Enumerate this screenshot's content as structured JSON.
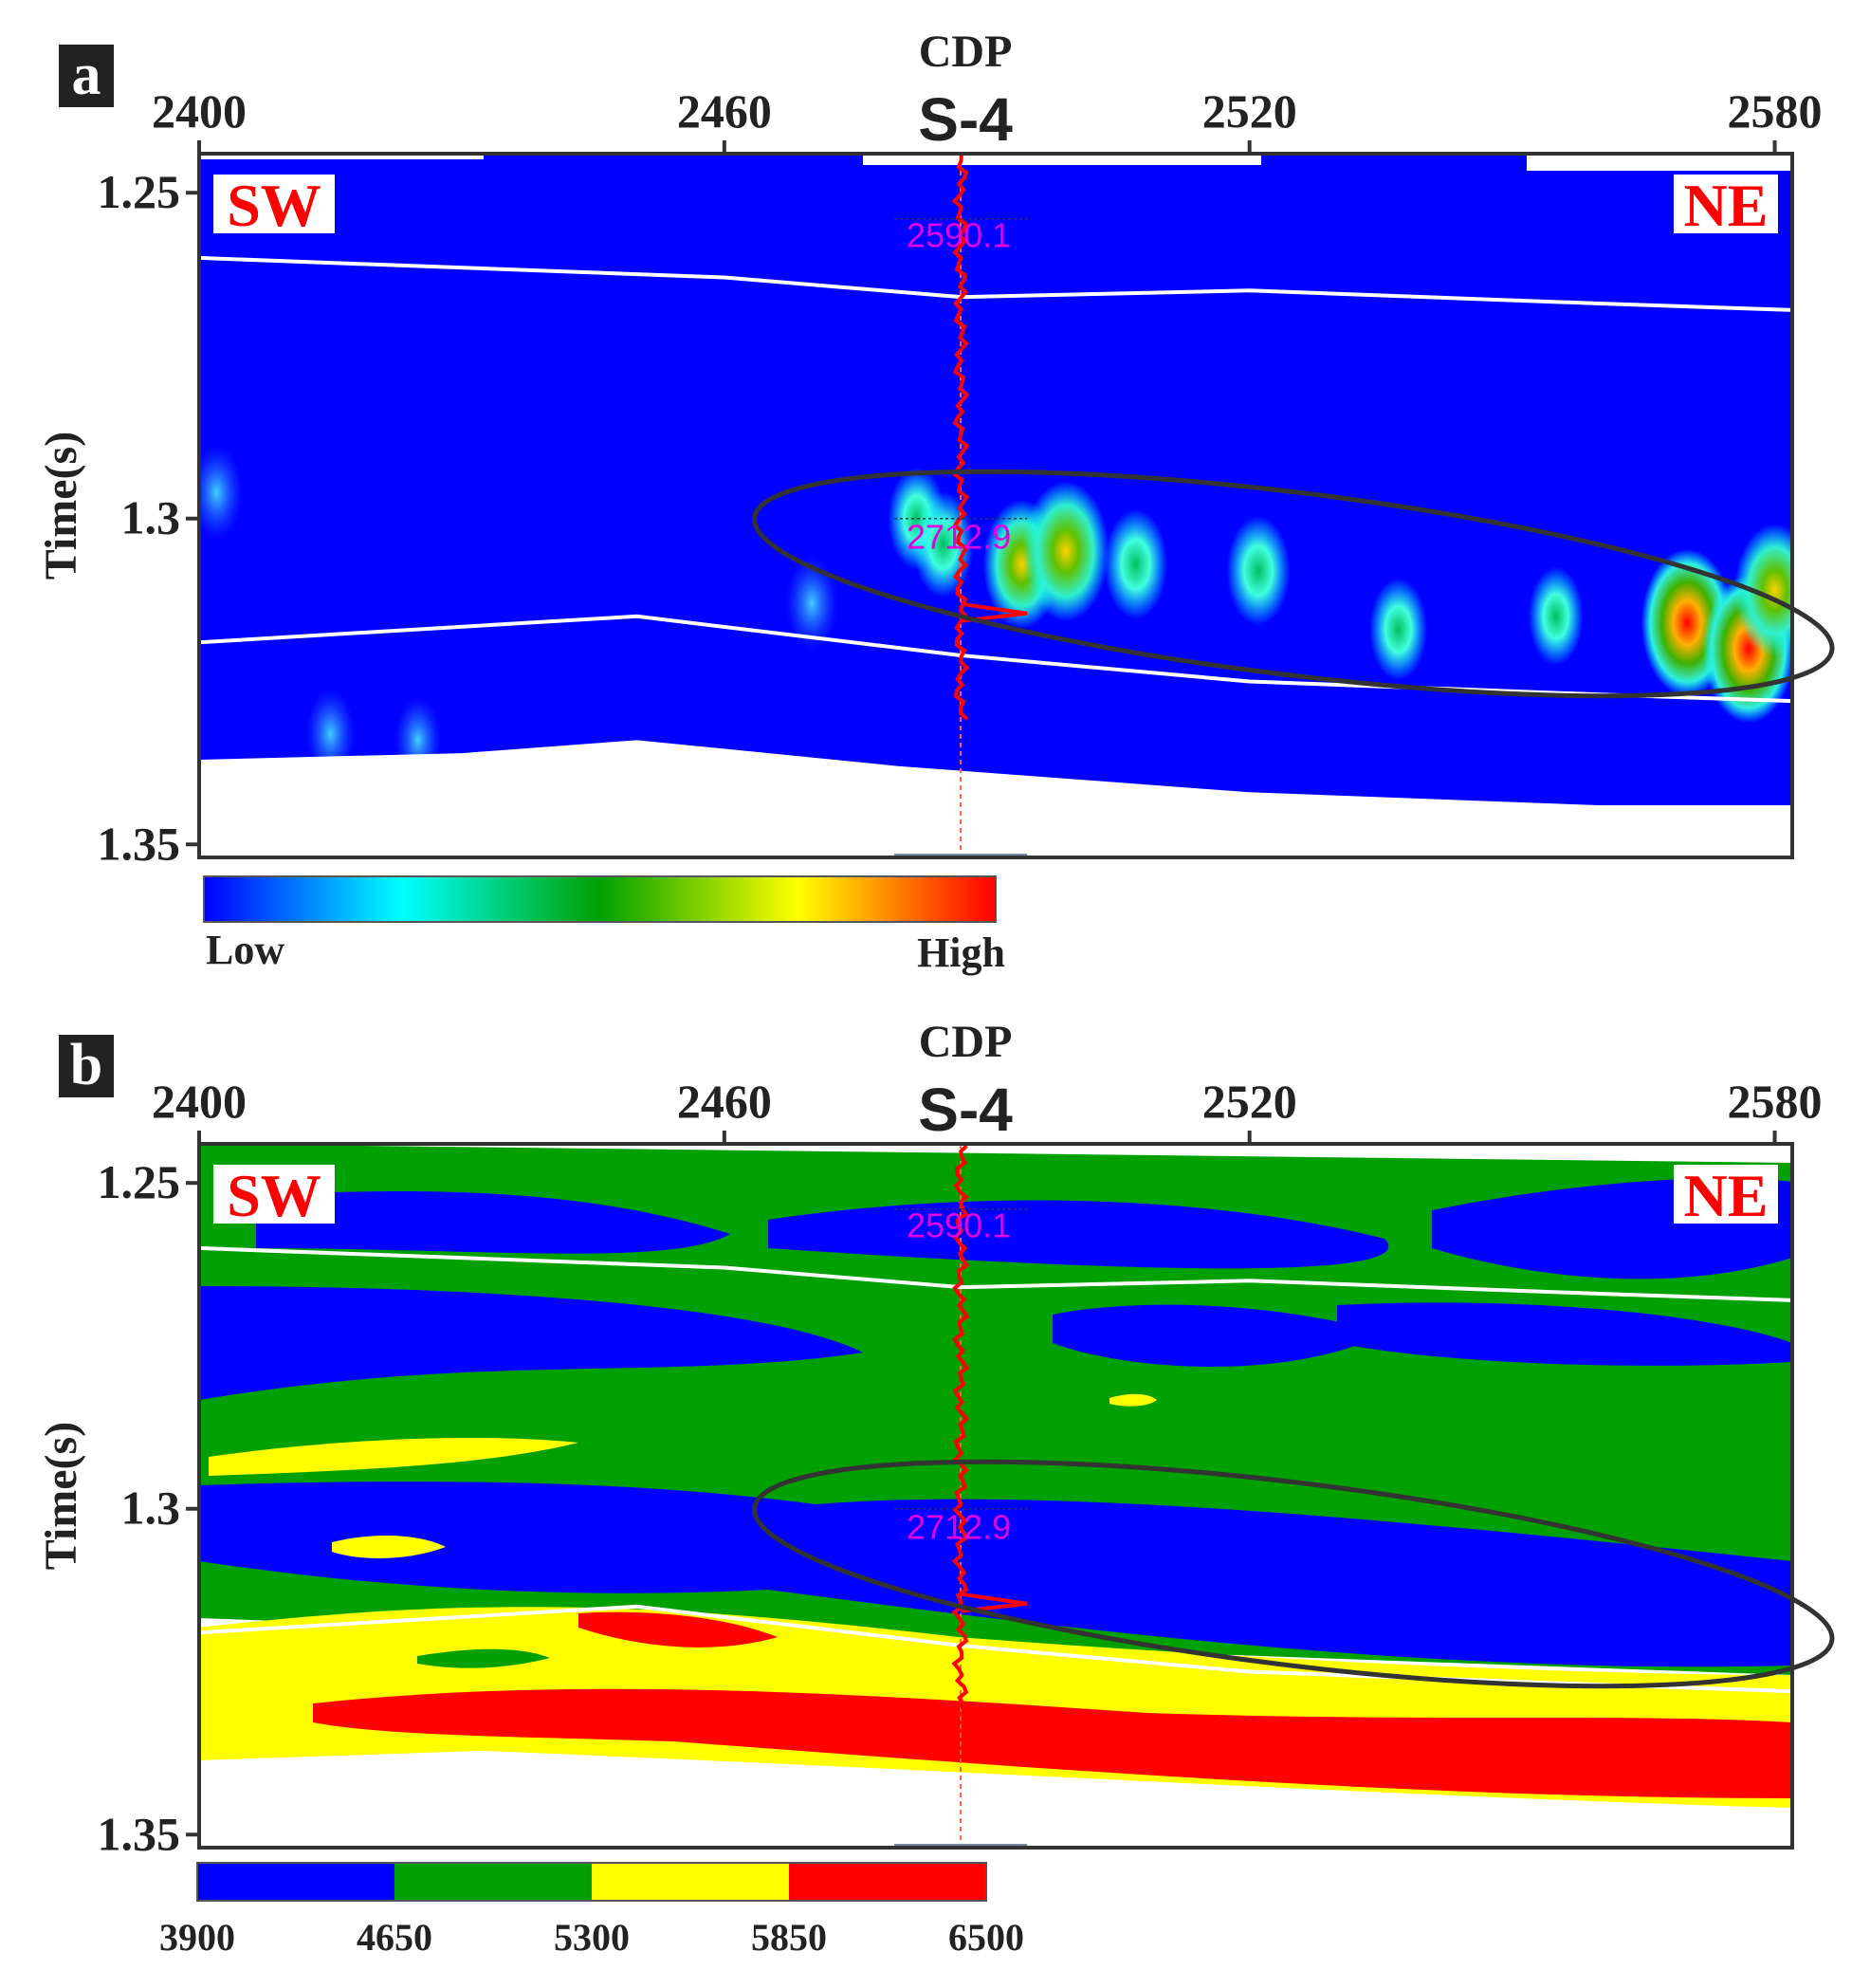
{
  "chart_data": [
    {
      "type": "heatmap",
      "panel_label": "a",
      "x_axis_title": "CDP",
      "x_ticks": [
        2400,
        2460,
        2520,
        2580
      ],
      "x_range": [
        2400,
        2582
      ],
      "y_axis_title": "Time(s)",
      "y_ticks": [
        "1.25",
        "1.3",
        "1.35"
      ],
      "y_range": [
        1.244,
        1.352
      ],
      "well": {
        "name": "S-4",
        "cdp": 2487,
        "top_label": "2590.1",
        "top_time": 1.254,
        "target_label": "2712.9",
        "target_time": 1.3
      },
      "left_label": "SW",
      "right_label": "NE",
      "horizons": [
        {
          "name": "upper",
          "points": [
            [
              2400,
              1.26
            ],
            [
              2460,
              1.263
            ],
            [
              2487,
              1.266
            ],
            [
              2520,
              1.265
            ],
            [
              2560,
              1.267
            ],
            [
              2582,
              1.268
            ]
          ]
        },
        {
          "name": "lower",
          "points": [
            [
              2400,
              1.319
            ],
            [
              2450,
              1.315
            ],
            [
              2487,
              1.321
            ],
            [
              2520,
              1.325
            ],
            [
              2560,
              1.327
            ],
            [
              2582,
              1.328
            ]
          ]
        }
      ],
      "data_base": [
        [
          2400,
          1.337
        ],
        [
          2430,
          1.336
        ],
        [
          2450,
          1.334
        ],
        [
          2480,
          1.338
        ],
        [
          2520,
          1.342
        ],
        [
          2560,
          1.344
        ],
        [
          2582,
          1.344
        ]
      ],
      "anomalies": [
        {
          "cdp": 2402,
          "time": 1.296,
          "level": 0.25
        },
        {
          "cdp": 2470,
          "time": 1.313,
          "level": 0.25
        },
        {
          "cdp": 2482,
          "time": 1.3,
          "level": 0.35
        },
        {
          "cdp": 2485,
          "time": 1.304,
          "level": 0.4
        },
        {
          "cdp": 2494,
          "time": 1.307,
          "level": 0.7
        },
        {
          "cdp": 2499,
          "time": 1.305,
          "level": 0.85
        },
        {
          "cdp": 2507,
          "time": 1.307,
          "level": 0.45
        },
        {
          "cdp": 2521,
          "time": 1.308,
          "level": 0.45
        },
        {
          "cdp": 2537,
          "time": 1.317,
          "level": 0.35
        },
        {
          "cdp": 2555,
          "time": 1.315,
          "level": 0.3
        },
        {
          "cdp": 2570,
          "time": 1.316,
          "level": 0.95
        },
        {
          "cdp": 2577,
          "time": 1.32,
          "level": 0.95
        },
        {
          "cdp": 2580,
          "time": 1.311,
          "level": 0.75
        },
        {
          "cdp": 2415,
          "time": 1.333,
          "level": 0.2
        },
        {
          "cdp": 2425,
          "time": 1.334,
          "level": 0.15
        }
      ],
      "ellipse": {
        "center_cdp": 2525,
        "center_time": 1.31,
        "half_width_cdp": 62,
        "half_height_time": 0.014,
        "tilt_deg": 7
      },
      "colorbar": {
        "type": "continuous",
        "low_label": "Low",
        "high_label": "High",
        "colors": [
          "#0000ff",
          "#00ffff",
          "#00a000",
          "#ffff00",
          "#ff0000"
        ]
      }
    },
    {
      "type": "heatmap",
      "panel_label": "b",
      "x_axis_title": "CDP",
      "x_ticks": [
        2400,
        2460,
        2520,
        2580
      ],
      "x_range": [
        2400,
        2582
      ],
      "y_axis_title": "Time(s)",
      "y_ticks": [
        "1.25",
        "1.3",
        "1.35"
      ],
      "y_range": [
        1.244,
        1.352
      ],
      "well": {
        "name": "S-4",
        "cdp": 2487,
        "top_label": "2590.1",
        "top_time": 1.254,
        "target_label": "2712.9",
        "target_time": 1.3
      },
      "left_label": "SW",
      "right_label": "NE",
      "horizons": [
        {
          "name": "upper",
          "points": [
            [
              2400,
              1.26
            ],
            [
              2460,
              1.263
            ],
            [
              2487,
              1.266
            ],
            [
              2520,
              1.265
            ],
            [
              2560,
              1.267
            ],
            [
              2582,
              1.268
            ]
          ]
        },
        {
          "name": "lower",
          "points": [
            [
              2400,
              1.319
            ],
            [
              2450,
              1.315
            ],
            [
              2487,
              1.321
            ],
            [
              2520,
              1.325
            ],
            [
              2560,
              1.327
            ],
            [
              2582,
              1.328
            ]
          ]
        }
      ],
      "ellipse": {
        "center_cdp": 2525,
        "center_time": 1.31,
        "half_width_cdp": 62,
        "half_height_time": 0.014,
        "tilt_deg": 7
      },
      "velocity_classes": [
        {
          "range": [
            3900,
            4650
          ],
          "color": "#0000ff"
        },
        {
          "range": [
            4650,
            5300
          ],
          "color": "#00a000"
        },
        {
          "range": [
            5300,
            5850
          ],
          "color": "#ffff00"
        },
        {
          "range": [
            5850,
            6500
          ],
          "color": "#ff0000"
        }
      ],
      "colorbar": {
        "type": "discrete",
        "tick_labels": [
          "3900",
          "4650",
          "5300",
          "5850",
          "6500"
        ]
      }
    }
  ]
}
